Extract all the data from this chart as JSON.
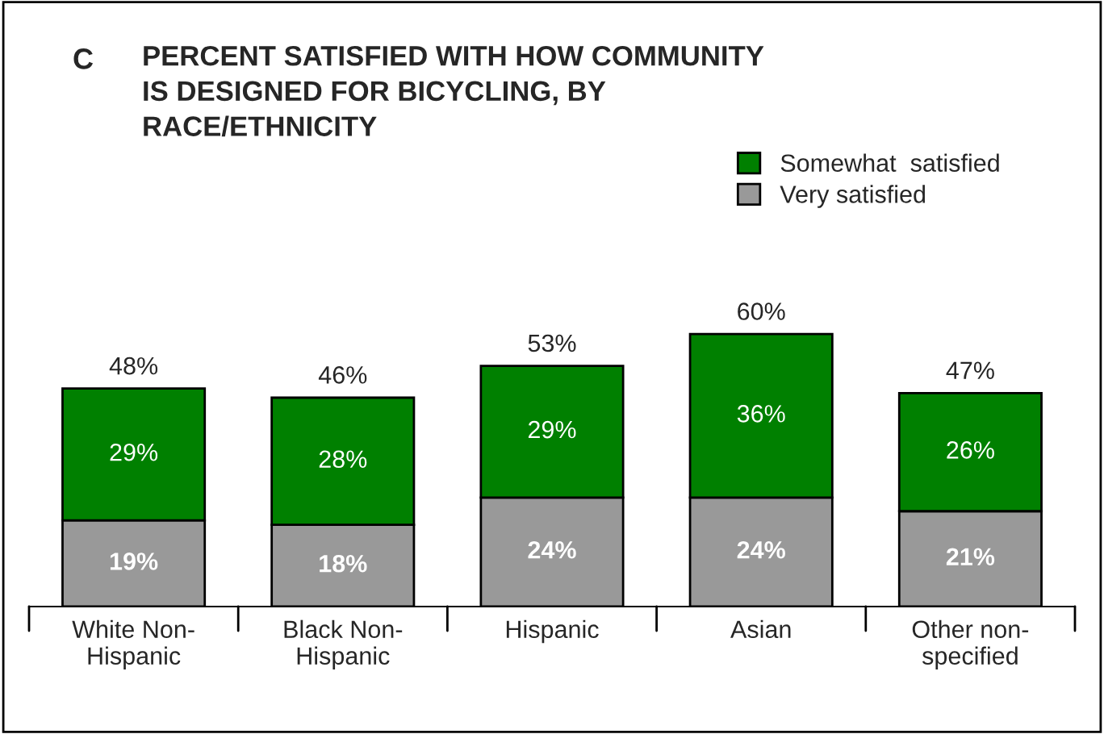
{
  "chart_data": {
    "type": "bar",
    "stacked": true,
    "title": "PERCENT SATISFIED WITH HOW COMMUNITY\nIS DESIGNED FOR BICYCLING, BY\nRACE/ETHNICITY",
    "annotations": [
      "C"
    ],
    "categories": [
      "White Non-\nHispanic",
      "Black Non-\nHispanic",
      "Hispanic",
      "Asian",
      "Other non-\nspecified"
    ],
    "series": [
      {
        "name": "Very satisfied",
        "color": "#999999",
        "values": [
          19,
          18,
          24,
          24,
          21
        ],
        "value_labels": [
          "19%",
          "18%",
          "24%",
          "24%",
          "21%"
        ]
      },
      {
        "name": "Somewhat  satisfied",
        "color": "#008000",
        "values": [
          29,
          28,
          29,
          36,
          26
        ],
        "value_labels": [
          "29%",
          "28%",
          "29%",
          "36%",
          "26%"
        ]
      }
    ],
    "totals": [
      "48%",
      "46%",
      "53%",
      "60%",
      "47%"
    ],
    "legend": "top right",
    "grid": false
  }
}
